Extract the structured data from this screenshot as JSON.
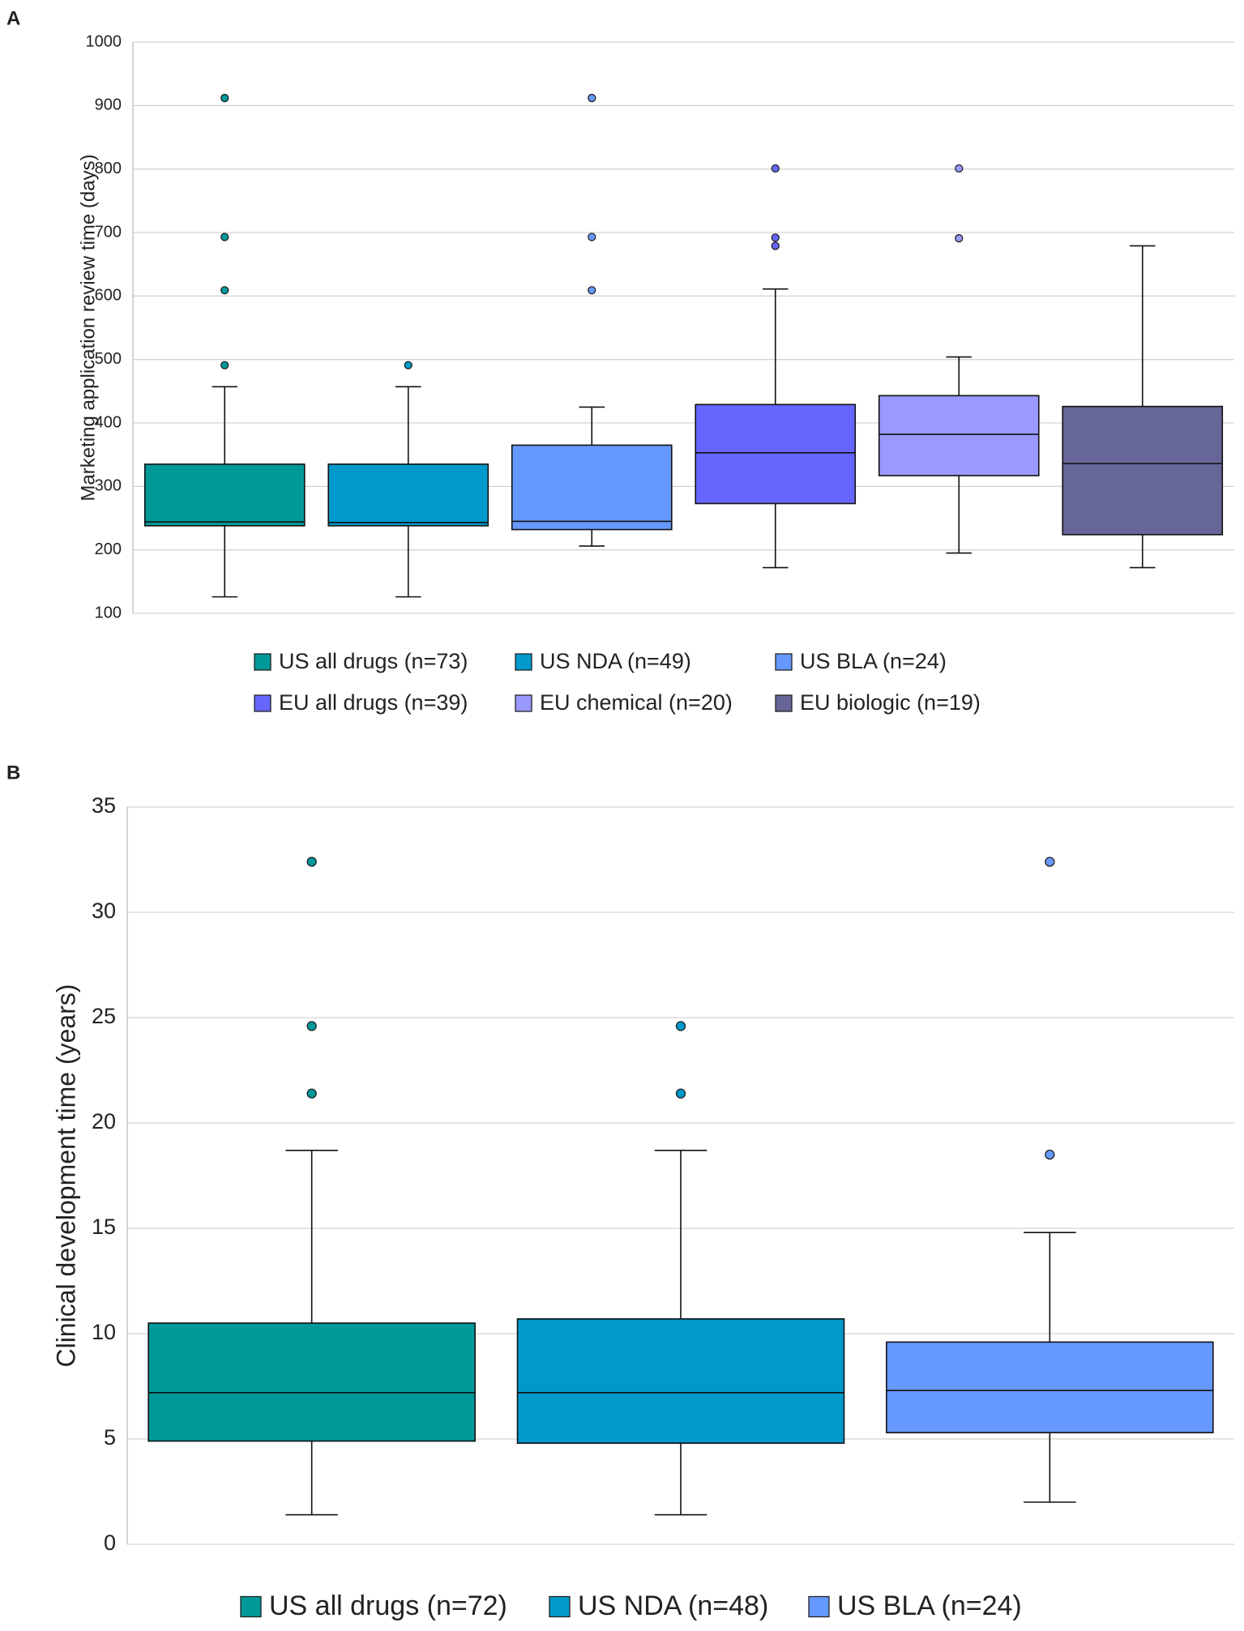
{
  "chart_data": [
    {
      "type": "boxplot",
      "panel_label": "A",
      "y_label": "Marketing application review time (days)",
      "ylim": [
        100,
        1000
      ],
      "yticks": [
        100,
        200,
        300,
        400,
        500,
        600,
        700,
        800,
        900,
        1000
      ],
      "grid": true,
      "series": [
        {
          "name": "US all drugs (n=73)",
          "color": "#009999",
          "whisker_low": 126,
          "q1": 238,
          "median": 244,
          "q3": 335,
          "whisker_high": 457,
          "outliers": [
            912,
            693,
            609,
            491
          ]
        },
        {
          "name": "US NDA (n=49)",
          "color": "#0099cc",
          "whisker_low": 126,
          "q1": 238,
          "median": 243,
          "q3": 335,
          "whisker_high": 457,
          "outliers": [
            491
          ]
        },
        {
          "name": "US BLA (n=24)",
          "color": "#6699ff",
          "whisker_low": 206,
          "q1": 232,
          "median": 245,
          "q3": 365,
          "whisker_high": 425,
          "outliers": [
            912,
            693,
            609
          ]
        },
        {
          "name": "EU all drugs (n=39)",
          "color": "#6666ff",
          "whisker_low": 172,
          "q1": 273,
          "median": 353,
          "q3": 429,
          "whisker_high": 611,
          "outliers": [
            801,
            692,
            679
          ]
        },
        {
          "name": "EU chemical (n=20)",
          "color": "#9999ff",
          "whisker_low": 195,
          "q1": 317,
          "median": 382,
          "q3": 443,
          "whisker_high": 504,
          "outliers": [
            801,
            691
          ]
        },
        {
          "name": "EU biologic (n=19)",
          "color": "#666699",
          "whisker_low": 172,
          "q1": 224,
          "median": 336,
          "q3": 426,
          "whisker_high": 679,
          "outliers": []
        }
      ]
    },
    {
      "type": "boxplot",
      "panel_label": "B",
      "y_label": "Clinical development time (years)",
      "ylim": [
        0,
        35
      ],
      "yticks": [
        0,
        5,
        10,
        15,
        20,
        25,
        30,
        35
      ],
      "grid": true,
      "series": [
        {
          "name": "US all drugs (n=72)",
          "color": "#009999",
          "whisker_low": 1.4,
          "q1": 4.9,
          "median": 7.2,
          "q3": 10.5,
          "whisker_high": 18.7,
          "outliers": [
            32.4,
            24.6,
            21.4
          ]
        },
        {
          "name": "US NDA (n=48)",
          "color": "#0099cc",
          "whisker_low": 1.4,
          "q1": 4.8,
          "median": 7.2,
          "q3": 10.7,
          "whisker_high": 18.7,
          "outliers": [
            24.6,
            21.4
          ]
        },
        {
          "name": "US BLA (n=24)",
          "color": "#6699ff",
          "whisker_low": 2.0,
          "q1": 5.3,
          "median": 7.3,
          "q3": 9.6,
          "whisker_high": 14.8,
          "outliers": [
            32.4,
            18.5
          ]
        }
      ]
    }
  ]
}
